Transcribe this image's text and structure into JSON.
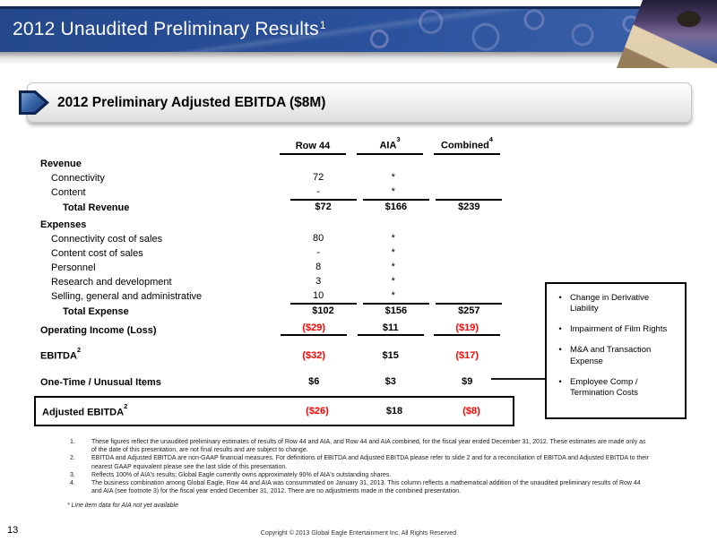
{
  "header": {
    "title": "2012 Unaudited Preliminary Results",
    "title_sup": "1"
  },
  "section": {
    "title": "2012 Preliminary Adjusted EBITDA ($8M)"
  },
  "table": {
    "columns": [
      {
        "label": "Row 44",
        "sup": ""
      },
      {
        "label": "AIA",
        "sup": "3"
      },
      {
        "label": "Combined",
        "sup": "4"
      }
    ],
    "rows": [
      {
        "kind": "section",
        "label": "Revenue"
      },
      {
        "kind": "item",
        "label": "Connectivity",
        "values": [
          "72",
          "*",
          ""
        ]
      },
      {
        "kind": "item",
        "label": "Content",
        "values": [
          "-",
          "*",
          ""
        ]
      },
      {
        "kind": "total",
        "label": "Total Revenue",
        "values": [
          "$72",
          "$166",
          "$239"
        ],
        "ruleAbove": true
      },
      {
        "kind": "gap",
        "h": 3
      },
      {
        "kind": "section",
        "label": "Expenses"
      },
      {
        "kind": "item",
        "label": "Connectivity cost of sales",
        "values": [
          "80",
          "*",
          ""
        ]
      },
      {
        "kind": "item",
        "label": "Content cost of sales",
        "values": [
          "-",
          "*",
          ""
        ]
      },
      {
        "kind": "item",
        "label": "Personnel",
        "values": [
          "8",
          "*",
          ""
        ]
      },
      {
        "kind": "item",
        "label": "Research and development",
        "values": [
          "3",
          "*",
          ""
        ]
      },
      {
        "kind": "item",
        "label": "Selling, general and administrative",
        "values": [
          "10",
          "*",
          ""
        ]
      },
      {
        "kind": "total",
        "label": "Total Expense",
        "values": [
          "$102",
          "$156",
          "$257"
        ],
        "ruleAbove": true
      },
      {
        "kind": "gap",
        "h": 4
      },
      {
        "kind": "lead",
        "label": "Operating Income (Loss)",
        "values": [
          "($29)",
          "$11",
          "($19)"
        ],
        "ruleBelow": true
      },
      {
        "kind": "gap",
        "h": 12
      },
      {
        "kind": "lead",
        "label": "EBITDA",
        "sup": "2",
        "values": [
          "($32)",
          "$15",
          "($17)"
        ]
      },
      {
        "kind": "gap",
        "h": 12
      },
      {
        "kind": "lead",
        "label": "One-Time / Unusual Items",
        "values": [
          "$6",
          "$3",
          "$9"
        ]
      },
      {
        "kind": "gap",
        "h": 9
      },
      {
        "kind": "lead",
        "label": "Adjusted EBITDA",
        "sup": "2",
        "values": [
          "($26)",
          "$18",
          "($8)"
        ],
        "boxed": true
      }
    ]
  },
  "callout": {
    "items": [
      "Change in Derivative Liability",
      "Impairment of Film Rights",
      "M&A and Transaction Expense",
      "Employee Comp / Termination Costs"
    ]
  },
  "footnotes": [
    {
      "num": "1.",
      "text": "These figures reflect the unaudited preliminary estimates of results of Row 44 and AIA, and Row 44 and AIA combined, for the fiscal year ended December 31, 2012. These estimates are made only as of the date of this presentation, are not final results and are subject to change."
    },
    {
      "num": "2.",
      "text": "EBITDA and Adjusted EBITDA are non-GAAP financial measures. For definitions of EBITDA and Adjusted EBITDA please refer to slide 2 and for a reconciliation of EBITDA and Adjusted EBITDA to their nearest GAAP equivalent please see the last slide of this presentation."
    },
    {
      "num": "3.",
      "text": "Reflects 100% of AIA's results; Global Eagle currently owns approximately 90% of AIA's outstanding shares."
    },
    {
      "num": "4.",
      "text": "The business combination among Global Eagle, Row 44 and AIA was consummated on January 31, 2013.  This column reflects a mathematical addition of the unaudited preliminary results of Row 44 and AIA (see footnote 3) for the fiscal year ended December 31, 2012.  There are no adjustments made in the combined presentation."
    }
  ],
  "asterisk_note": "* Line item data for AIA not yet available",
  "page_number": "13",
  "copyright": "Copyright © 2013 Global Eagle Entertainment Inc.  All Rights Reserved",
  "colors": {
    "banner_blue": "#2b529c",
    "banner_border": "#142a52",
    "negative_red": "#ff0000"
  }
}
